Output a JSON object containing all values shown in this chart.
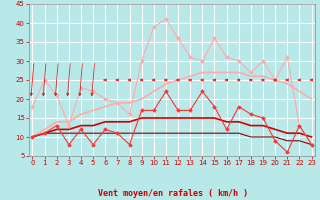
{
  "x": [
    0,
    1,
    2,
    3,
    4,
    5,
    6,
    7,
    8,
    9,
    10,
    11,
    12,
    13,
    14,
    15,
    16,
    17,
    18,
    19,
    20,
    21,
    22,
    23
  ],
  "background_color": "#b8e8e8",
  "grid_color": "#ffffff",
  "xlabel": "Vent moyen/en rafales ( km/h )",
  "ylim": [
    5,
    45
  ],
  "yticks": [
    5,
    10,
    15,
    20,
    25,
    30,
    35,
    40,
    45
  ],
  "series": [
    {
      "name": "max_rafales",
      "color": "#ffaaaa",
      "linewidth": 0.8,
      "marker": "D",
      "markersize": 2.0,
      "values": [
        18,
        25,
        21,
        13,
        23,
        22,
        20,
        19,
        16,
        30,
        39,
        41,
        36,
        31,
        30,
        36,
        31,
        30,
        27,
        30,
        25,
        31,
        13,
        8
      ]
    },
    {
      "name": "moy_rafales",
      "color": "#ffaaaa",
      "linewidth": 1.2,
      "marker": null,
      "markersize": 0,
      "values": [
        10,
        12,
        14,
        14,
        16,
        17,
        18,
        19,
        19,
        20,
        22,
        24,
        25,
        26,
        27,
        27,
        27,
        27,
        26,
        26,
        25,
        24,
        22,
        20
      ]
    },
    {
      "name": "max_vent",
      "color": "#ff3333",
      "linewidth": 0.8,
      "marker": "D",
      "markersize": 2.0,
      "values": [
        10,
        11,
        13,
        8,
        12,
        8,
        12,
        11,
        8,
        17,
        17,
        22,
        17,
        17,
        22,
        18,
        12,
        18,
        16,
        15,
        9,
        6,
        13,
        8
      ]
    },
    {
      "name": "moy_vent",
      "color": "#cc0000",
      "linewidth": 1.2,
      "marker": null,
      "markersize": 0,
      "values": [
        10,
        11,
        12,
        12,
        13,
        13,
        14,
        14,
        14,
        15,
        15,
        15,
        15,
        15,
        15,
        15,
        14,
        14,
        13,
        13,
        12,
        11,
        11,
        10
      ]
    },
    {
      "name": "min_vent",
      "color": "#880000",
      "linewidth": 0.8,
      "marker": null,
      "markersize": 0,
      "values": [
        10,
        11,
        11,
        11,
        11,
        11,
        11,
        11,
        11,
        11,
        11,
        11,
        11,
        11,
        11,
        11,
        11,
        11,
        10,
        10,
        10,
        9,
        9,
        8
      ]
    }
  ],
  "arrow_angles": [
    315,
    315,
    315,
    315,
    315,
    315,
    270,
    270,
    270,
    270,
    270,
    270,
    270,
    270,
    270,
    270,
    270,
    270,
    270,
    270,
    270,
    270,
    270,
    270
  ],
  "xlabel_color": "#cc0000",
  "xlabel_fontsize": 6.0,
  "tick_fontsize": 5.0,
  "tick_color": "#cc0000"
}
